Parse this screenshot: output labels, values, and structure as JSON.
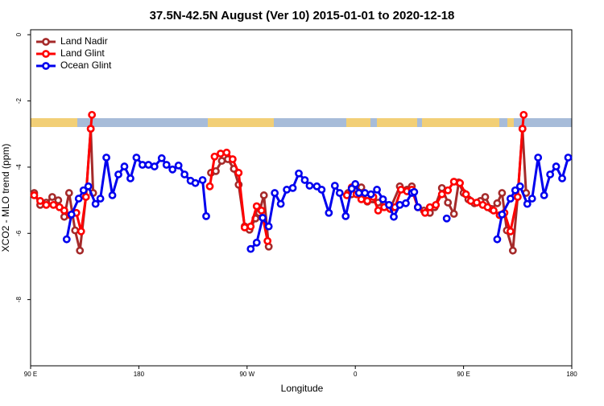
{
  "chart_data": {
    "type": "line",
    "title": "37.5N-42.5N August (Ver 10)   2015-01-01 to 2020-12-18",
    "x_label": "Longitude",
    "y_label": "XCO2 - MLO trend (ppm)",
    "xlim": [
      90,
      540
    ],
    "xticks": [
      {
        "value": 90,
        "label": "90 E"
      },
      {
        "value": 180,
        "label": "180"
      },
      {
        "value": 270,
        "label": "90 W"
      },
      {
        "value": 360,
        "label": "0"
      },
      {
        "value": 450,
        "label": "90 E"
      },
      {
        "value": 540,
        "label": "180"
      }
    ],
    "ylim": [
      -10,
      0.15
    ],
    "yticks": [
      0,
      -2,
      -4,
      -6,
      -8
    ],
    "legend": "top-left",
    "series": [
      {
        "name": "Land Nadir",
        "color": "#a52a2a",
        "x": [
          93,
          98,
          103,
          108,
          113,
          118,
          122,
          127,
          131,
          136,
          140,
          142,
          null,
          240,
          244,
          249,
          254,
          259,
          263,
          268,
          272,
          277,
          280,
          284,
          288,
          null,
          354,
          357,
          361,
          365,
          370,
          379,
          384,
          389,
          397,
          403,
          407,
          412,
          417,
          422,
          426,
          432,
          437,
          442,
          446,
          450,
          454,
          459,
          464,
          468,
          473,
          478,
          482,
          486,
          491,
          495,
          499,
          502
        ],
        "values": [
          -4.78,
          -5.14,
          -5.07,
          -4.9,
          -5.0,
          -5.5,
          -4.78,
          -5.91,
          -6.52,
          -4.9,
          -2.84,
          -4.78,
          null,
          -4.17,
          -4.12,
          -3.81,
          -3.76,
          -4.05,
          -4.53,
          -5.79,
          -5.89,
          -5.55,
          -5.38,
          -4.85,
          -6.4,
          null,
          -4.78,
          -4.82,
          -4.73,
          -4.61,
          -5.04,
          -5.07,
          -5.14,
          -5.26,
          -4.58,
          -4.68,
          -4.58,
          -5.21,
          -5.31,
          -5.38,
          -5.21,
          -4.63,
          -5.07,
          -5.41,
          -4.46,
          -4.78,
          -4.97,
          -5.09,
          -5.02,
          -4.9,
          -5.26,
          -5.09,
          -4.78,
          -5.91,
          -6.52,
          -4.9,
          -2.84,
          -4.78
        ]
      },
      {
        "name": "Land Glint",
        "color": "#ff0000",
        "x": [
          93,
          98,
          103,
          109,
          114,
          118,
          123,
          128,
          132,
          136,
          140,
          141,
          null,
          239,
          243,
          248,
          253,
          258,
          263,
          268,
          273,
          278,
          282,
          287,
          null,
          353,
          357,
          361,
          365,
          370,
          375,
          379,
          384,
          389,
          393,
          398,
          403,
          407,
          412,
          418,
          422,
          427,
          432,
          437,
          442,
          447,
          452,
          456,
          461,
          466,
          470,
          475,
          480,
          484,
          489,
          495,
          499,
          500
        ],
        "values": [
          -4.85,
          -5.02,
          -5.14,
          -5.14,
          -5.21,
          -5.31,
          -5.45,
          -5.38,
          -5.94,
          -4.9,
          -2.84,
          -2.42,
          null,
          -4.58,
          -3.68,
          -3.59,
          -3.56,
          -3.76,
          -4.17,
          -5.82,
          -5.79,
          -5.18,
          -5.31,
          -6.23,
          null,
          -4.85,
          -4.61,
          -4.82,
          -4.97,
          -5.02,
          -4.9,
          -5.31,
          -5.21,
          -5.26,
          -5.21,
          -4.68,
          -4.73,
          -4.68,
          -5.21,
          -5.38,
          -5.21,
          -5.14,
          -4.82,
          -4.7,
          -4.44,
          -4.48,
          -4.82,
          -5.02,
          -5.07,
          -5.14,
          -5.21,
          -5.31,
          -5.45,
          -5.38,
          -5.94,
          -4.9,
          -2.84,
          -2.42
        ]
      },
      {
        "name": "Ocean Glint",
        "color": "#0000ee",
        "x": [
          120,
          124,
          130,
          134,
          138,
          144,
          148,
          153,
          158,
          163,
          168,
          173,
          178,
          183,
          188,
          193,
          199,
          203,
          208,
          213,
          218,
          223,
          227,
          233,
          236,
          null,
          273,
          278,
          283,
          288,
          293,
          298,
          303,
          308,
          313,
          318,
          322,
          328,
          332,
          338,
          343,
          347,
          352,
          357,
          360,
          363,
          368,
          373,
          378,
          383,
          388,
          392,
          397,
          402,
          407,
          409,
          412,
          null,
          436,
          null,
          478,
          482,
          489,
          493,
          497,
          503,
          507,
          512,
          517,
          522,
          527,
          532,
          537
        ],
        "values": [
          -6.18,
          -5.43,
          -4.95,
          -4.7,
          -4.58,
          -5.11,
          -4.95,
          -3.71,
          -4.85,
          -4.22,
          -3.98,
          -4.34,
          -3.71,
          -3.93,
          -3.93,
          -3.98,
          -3.73,
          -3.93,
          -4.07,
          -3.95,
          -4.22,
          -4.41,
          -4.48,
          -4.39,
          -5.48,
          null,
          -6.47,
          -6.28,
          -5.53,
          -5.79,
          -4.78,
          -5.11,
          -4.68,
          -4.63,
          -4.19,
          -4.39,
          -4.56,
          -4.58,
          -4.68,
          -5.38,
          -4.56,
          -4.78,
          -5.48,
          -4.65,
          -4.51,
          -4.78,
          -4.78,
          -4.82,
          -4.68,
          -4.97,
          -5.14,
          -5.5,
          -5.14,
          -5.09,
          -4.78,
          -4.75,
          -5.21,
          null,
          -5.55,
          null,
          -6.18,
          -5.43,
          -4.95,
          -4.7,
          -4.58,
          -5.11,
          -4.95,
          -3.71,
          -4.85,
          -4.22,
          -3.98,
          -4.34,
          -3.71
        ]
      }
    ]
  }
}
